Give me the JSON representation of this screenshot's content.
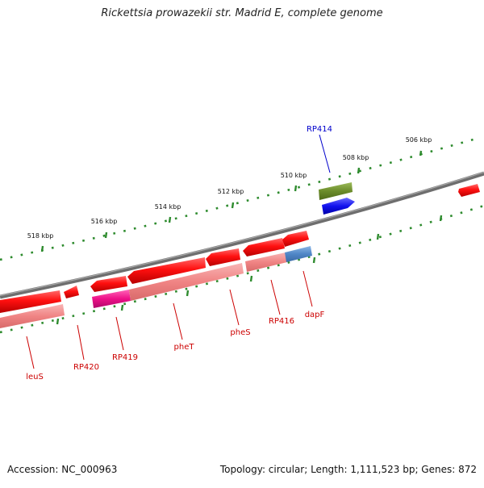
{
  "title": "Rickettsia prowazekii str. Madrid E, complete genome",
  "footer": {
    "accession": "Accession: NC_000963",
    "summary": "Topology: circular; Length: 1,111,523 bp; Genes: 872"
  },
  "scale_labels": [
    "506 kbp",
    "508 kbp",
    "510 kbp",
    "512 kbp",
    "514 kbp",
    "516 kbp",
    "518 kbp"
  ],
  "gene_labels": {
    "forward": [
      "RP414"
    ],
    "reverse": [
      "leuS",
      "RP420",
      "RP419",
      "pheT",
      "pheS",
      "RP416",
      "dapF"
    ]
  },
  "colors": {
    "backbone": "#7a7a7a",
    "gene_red": "#ee1111",
    "gene_pink": "#f08a8a",
    "gene_magenta": "#ee1188",
    "gene_green": "#6b8c2a",
    "gene_blue": "#1111ee",
    "gene_steel": "#4f86c6",
    "tick": "#2e8b2e",
    "label_red": "#cc0000",
    "label_blue": "#0000cc"
  }
}
